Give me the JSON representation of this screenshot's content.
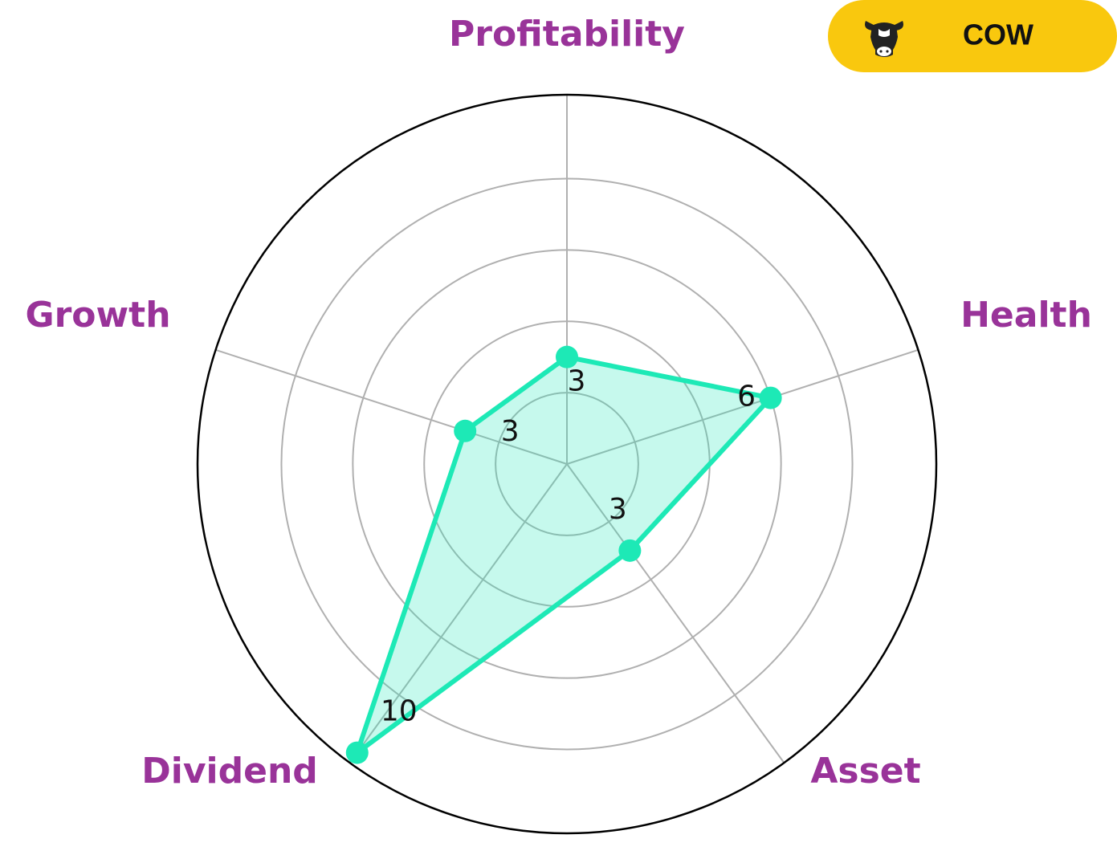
{
  "chart_data": {
    "type": "radar",
    "badge": "COW",
    "categories": [
      "Profitability",
      "Health",
      "Asset",
      "Dividend",
      "Growth"
    ],
    "values": [
      3,
      6,
      3,
      10,
      3
    ],
    "color": "#1de9b6",
    "label_color": "#993399",
    "ylim": [
      0,
      10.35
    ],
    "yticks": [
      2,
      4,
      6,
      8
    ],
    "grid": true
  }
}
